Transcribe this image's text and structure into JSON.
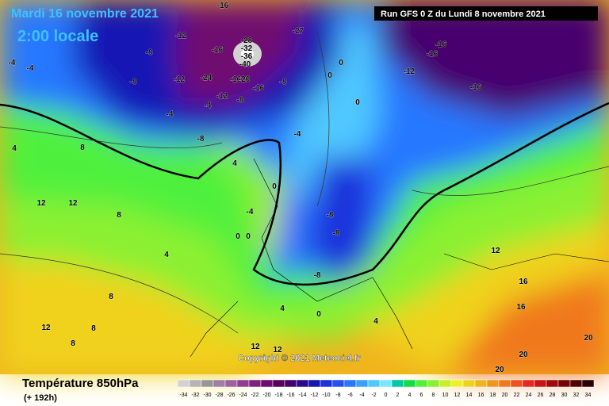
{
  "header": {
    "date": "Mardi 16 novembre 2021",
    "time": "2:00 locale",
    "run": "Run GFS 0 Z du Lundi 8 novembre 2021"
  },
  "map": {
    "contour_labels": [
      -16,
      -12,
      -8,
      -4,
      -4,
      -8,
      -12,
      -28,
      -32,
      -36,
      -40,
      -16,
      -20,
      -16,
      -24,
      -8,
      -16,
      -12,
      -8,
      -4,
      -4,
      -8,
      -4,
      -27,
      0,
      0,
      0,
      -12,
      -16,
      -16,
      -16,
      4,
      4,
      0,
      8,
      12,
      12,
      8,
      -4,
      0,
      0,
      4,
      8,
      12,
      8,
      12,
      -8,
      -8,
      -8,
      4,
      0,
      4,
      12,
      16,
      16,
      20,
      20,
      20,
      12,
      8
    ],
    "copyright": "Copyright © 2021 Meteociel.fr"
  },
  "footer": {
    "title": "Température 850hPa",
    "lead": "(+ 192h)"
  },
  "scale": {
    "values": [
      -34,
      -32,
      -30,
      -28,
      -26,
      -24,
      -22,
      -20,
      -18,
      -16,
      -14,
      -12,
      -10,
      -8,
      -6,
      -4,
      -2,
      0,
      2,
      4,
      6,
      8,
      10,
      12,
      14,
      16,
      18,
      20,
      22,
      24,
      26,
      28,
      30,
      32,
      34
    ],
    "colors": [
      "#d2d2d2",
      "#b4b4b4",
      "#969696",
      "#a080a0",
      "#a060a0",
      "#903c90",
      "#802080",
      "#700a70",
      "#5a005a",
      "#46006e",
      "#2a0a8c",
      "#1414b4",
      "#1e32dc",
      "#2850f0",
      "#2878ff",
      "#3ca0ff",
      "#50c8ff",
      "#78e6ff",
      "#00c8a0",
      "#14dc46",
      "#50f03c",
      "#8cf032",
      "#c8f028",
      "#f0f028",
      "#f0d21e",
      "#f0b41e",
      "#f0961e",
      "#f0781e",
      "#f0501e",
      "#e6281e",
      "#c81414",
      "#a00a0a",
      "#780000",
      "#500000",
      "#280000"
    ]
  }
}
